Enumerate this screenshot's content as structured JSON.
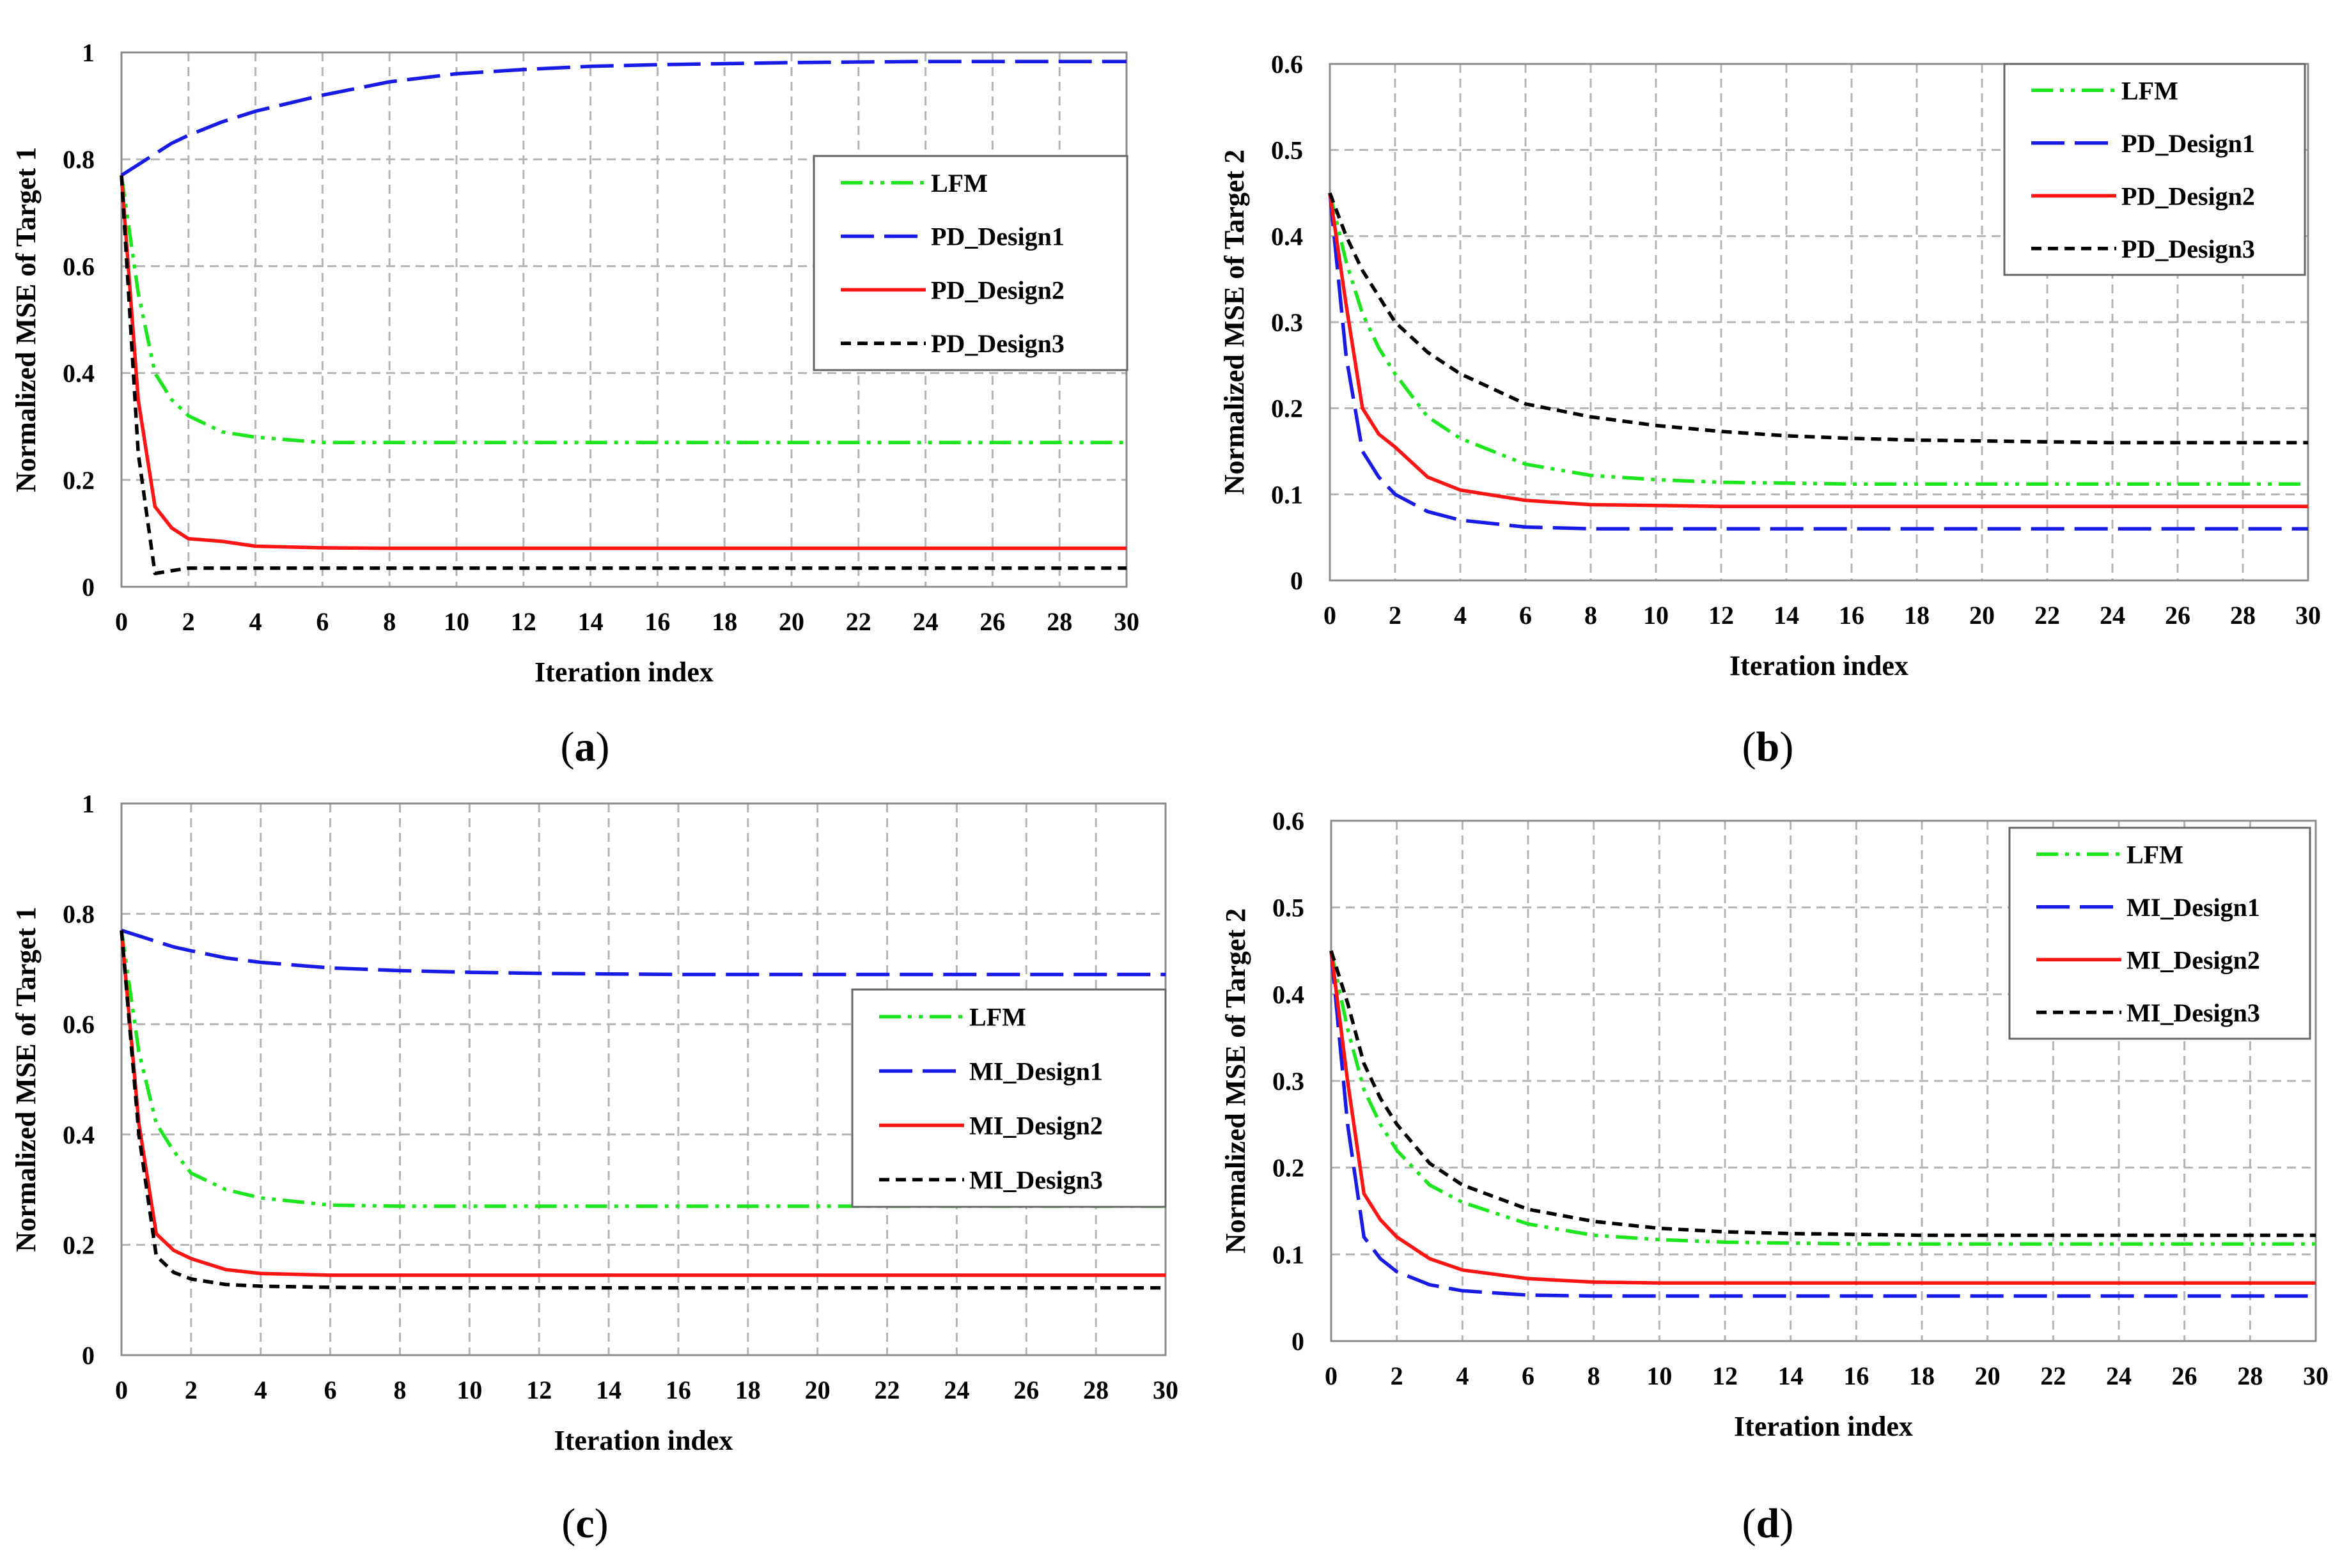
{
  "colors": {
    "lfm": "#1ee61e",
    "design1": "#1a1ae6",
    "design2": "#ff1414",
    "design3": "#000000"
  },
  "chart_data": [
    {
      "id": "a",
      "type": "line",
      "caption": "a",
      "xlabel": "Iteration index",
      "ylabel": "Normalized MSE of Target 1",
      "xlim": [
        0,
        30
      ],
      "ylim": [
        0,
        1
      ],
      "xticks": [
        0,
        2,
        4,
        6,
        8,
        10,
        12,
        14,
        16,
        18,
        20,
        22,
        24,
        26,
        28,
        30
      ],
      "yticks": [
        0,
        0.2,
        0.4,
        0.6,
        0.8,
        1
      ],
      "ytick_labels": [
        "0",
        "0.2",
        "0.4",
        "0.6",
        "0.8",
        "1"
      ],
      "grid": true,
      "legend_position": "upper-right",
      "x": [
        0,
        0.5,
        1,
        1.5,
        2,
        3,
        4,
        6,
        8,
        10,
        12,
        14,
        16,
        18,
        20,
        22,
        24,
        26,
        28,
        30
      ],
      "series": [
        {
          "name": "LFM",
          "style": "dashdotdot",
          "color": "#1ee61e",
          "values": [
            0.77,
            0.55,
            0.4,
            0.35,
            0.32,
            0.29,
            0.28,
            0.27,
            0.27,
            0.27,
            0.27,
            0.27,
            0.27,
            0.27,
            0.27,
            0.27,
            0.27,
            0.27,
            0.27,
            0.27
          ]
        },
        {
          "name": "PD_Design1",
          "style": "longdash",
          "color": "#1a1ae6",
          "values": [
            0.77,
            0.79,
            0.81,
            0.83,
            0.845,
            0.87,
            0.89,
            0.92,
            0.945,
            0.96,
            0.968,
            0.974,
            0.977,
            0.979,
            0.981,
            0.982,
            0.983,
            0.983,
            0.983,
            0.983
          ]
        },
        {
          "name": "PD_Design2",
          "style": "solid",
          "color": "#ff1414",
          "values": [
            0.77,
            0.35,
            0.15,
            0.11,
            0.09,
            0.085,
            0.076,
            0.073,
            0.072,
            0.072,
            0.072,
            0.072,
            0.072,
            0.072,
            0.072,
            0.072,
            0.072,
            0.072,
            0.072,
            0.072
          ]
        },
        {
          "name": "PD_Design3",
          "style": "shortdash",
          "color": "#000000",
          "values": [
            0.77,
            0.25,
            0.025,
            0.03,
            0.035,
            0.035,
            0.035,
            0.035,
            0.035,
            0.035,
            0.035,
            0.035,
            0.035,
            0.035,
            0.035,
            0.035,
            0.035,
            0.035,
            0.035,
            0.035
          ]
        }
      ]
    },
    {
      "id": "b",
      "type": "line",
      "caption": "b",
      "xlabel": "Iteration index",
      "ylabel": "Normalized MSE of Target 2",
      "xlim": [
        0,
        30
      ],
      "ylim": [
        0,
        0.6
      ],
      "xticks": [
        0,
        2,
        4,
        6,
        8,
        10,
        12,
        14,
        16,
        18,
        20,
        22,
        24,
        26,
        28,
        30
      ],
      "yticks": [
        0,
        0.1,
        0.2,
        0.3,
        0.4,
        0.5,
        0.6
      ],
      "ytick_labels": [
        "0",
        "0.1",
        "0.2",
        "0.3",
        "0.4",
        "0.5",
        "0.6"
      ],
      "grid": true,
      "legend_position": "upper-right",
      "x": [
        0,
        0.5,
        1,
        1.5,
        2,
        3,
        4,
        6,
        8,
        10,
        12,
        14,
        16,
        18,
        20,
        22,
        24,
        26,
        28,
        30
      ],
      "series": [
        {
          "name": "LFM",
          "style": "dashdotdot",
          "color": "#1ee61e",
          "values": [
            0.45,
            0.37,
            0.31,
            0.27,
            0.24,
            0.19,
            0.165,
            0.135,
            0.122,
            0.117,
            0.114,
            0.113,
            0.112,
            0.112,
            0.112,
            0.112,
            0.112,
            0.112,
            0.112,
            0.112
          ]
        },
        {
          "name": "PD_Design1",
          "style": "longdash",
          "color": "#1a1ae6",
          "values": [
            0.45,
            0.26,
            0.15,
            0.12,
            0.1,
            0.08,
            0.07,
            0.062,
            0.06,
            0.06,
            0.06,
            0.06,
            0.06,
            0.06,
            0.06,
            0.06,
            0.06,
            0.06,
            0.06,
            0.06
          ]
        },
        {
          "name": "PD_Design2",
          "style": "solid",
          "color": "#ff1414",
          "values": [
            0.45,
            0.32,
            0.2,
            0.17,
            0.155,
            0.12,
            0.105,
            0.093,
            0.088,
            0.087,
            0.086,
            0.086,
            0.086,
            0.086,
            0.086,
            0.086,
            0.086,
            0.086,
            0.086,
            0.086
          ]
        },
        {
          "name": "PD_Design3",
          "style": "shortdash",
          "color": "#000000",
          "values": [
            0.45,
            0.4,
            0.36,
            0.33,
            0.3,
            0.265,
            0.24,
            0.205,
            0.19,
            0.18,
            0.173,
            0.168,
            0.165,
            0.163,
            0.162,
            0.161,
            0.16,
            0.16,
            0.16,
            0.16
          ]
        }
      ]
    },
    {
      "id": "c",
      "type": "line",
      "caption": "c",
      "xlabel": "Iteration index",
      "ylabel": "Normalized MSE of Target 1",
      "xlim": [
        0,
        30
      ],
      "ylim": [
        0,
        1
      ],
      "xticks": [
        0,
        2,
        4,
        6,
        8,
        10,
        12,
        14,
        16,
        18,
        20,
        22,
        24,
        26,
        28,
        30
      ],
      "yticks": [
        0,
        0.2,
        0.4,
        0.6,
        0.8,
        1
      ],
      "ytick_labels": [
        "0",
        "0.2",
        "0.4",
        "0.6",
        "0.8",
        "1"
      ],
      "grid": true,
      "legend_position": "center-right",
      "x": [
        0,
        0.5,
        1,
        1.5,
        2,
        3,
        4,
        6,
        8,
        10,
        12,
        14,
        16,
        18,
        20,
        22,
        24,
        26,
        28,
        30
      ],
      "series": [
        {
          "name": "LFM",
          "style": "dashdotdot",
          "color": "#1ee61e",
          "values": [
            0.77,
            0.55,
            0.42,
            0.37,
            0.33,
            0.3,
            0.285,
            0.272,
            0.27,
            0.27,
            0.27,
            0.27,
            0.27,
            0.27,
            0.27,
            0.27,
            0.27,
            0.27,
            0.27,
            0.27
          ]
        },
        {
          "name": "MI_Design1",
          "style": "longdash",
          "color": "#1a1ae6",
          "values": [
            0.77,
            0.76,
            0.75,
            0.74,
            0.733,
            0.72,
            0.712,
            0.702,
            0.697,
            0.694,
            0.692,
            0.691,
            0.69,
            0.69,
            0.69,
            0.69,
            0.69,
            0.69,
            0.69,
            0.69
          ]
        },
        {
          "name": "MI_Design2",
          "style": "solid",
          "color": "#ff1414",
          "values": [
            0.77,
            0.42,
            0.22,
            0.19,
            0.175,
            0.155,
            0.148,
            0.145,
            0.145,
            0.145,
            0.145,
            0.145,
            0.145,
            0.145,
            0.145,
            0.145,
            0.145,
            0.145,
            0.145,
            0.145
          ]
        },
        {
          "name": "MI_Design3",
          "style": "shortdash",
          "color": "#000000",
          "values": [
            0.77,
            0.4,
            0.18,
            0.15,
            0.138,
            0.128,
            0.125,
            0.123,
            0.122,
            0.122,
            0.122,
            0.122,
            0.122,
            0.122,
            0.122,
            0.122,
            0.122,
            0.122,
            0.122,
            0.122
          ]
        }
      ]
    },
    {
      "id": "d",
      "type": "line",
      "caption": "d",
      "xlabel": "Iteration index",
      "ylabel": "Normalized MSE of Target 2",
      "xlim": [
        0,
        30
      ],
      "ylim": [
        0,
        0.6
      ],
      "xticks": [
        0,
        2,
        4,
        6,
        8,
        10,
        12,
        14,
        16,
        18,
        20,
        22,
        24,
        26,
        28,
        30
      ],
      "yticks": [
        0,
        0.1,
        0.2,
        0.3,
        0.4,
        0.5,
        0.6
      ],
      "ytick_labels": [
        "0",
        "0.1",
        "0.2",
        "0.3",
        "0.4",
        "0.5",
        "0.6"
      ],
      "grid": true,
      "legend_position": "upper-right",
      "x": [
        0,
        0.5,
        1,
        1.5,
        2,
        3,
        4,
        6,
        8,
        10,
        12,
        14,
        16,
        18,
        20,
        22,
        24,
        26,
        28,
        30
      ],
      "series": [
        {
          "name": "LFM",
          "style": "dashdotdot",
          "color": "#1ee61e",
          "values": [
            0.45,
            0.36,
            0.29,
            0.25,
            0.22,
            0.18,
            0.16,
            0.135,
            0.122,
            0.117,
            0.114,
            0.113,
            0.112,
            0.112,
            0.112,
            0.112,
            0.112,
            0.112,
            0.112,
            0.112
          ]
        },
        {
          "name": "MI_Design1",
          "style": "longdash",
          "color": "#1a1ae6",
          "values": [
            0.45,
            0.25,
            0.12,
            0.095,
            0.08,
            0.065,
            0.058,
            0.053,
            0.052,
            0.052,
            0.052,
            0.052,
            0.052,
            0.052,
            0.052,
            0.052,
            0.052,
            0.052,
            0.052,
            0.052
          ]
        },
        {
          "name": "MI_Design2",
          "style": "solid",
          "color": "#ff1414",
          "values": [
            0.45,
            0.3,
            0.17,
            0.14,
            0.12,
            0.095,
            0.082,
            0.072,
            0.068,
            0.067,
            0.067,
            0.067,
            0.067,
            0.067,
            0.067,
            0.067,
            0.067,
            0.067,
            0.067,
            0.067
          ]
        },
        {
          "name": "MI_Design3",
          "style": "shortdash",
          "color": "#000000",
          "values": [
            0.45,
            0.39,
            0.32,
            0.28,
            0.25,
            0.205,
            0.18,
            0.152,
            0.138,
            0.13,
            0.126,
            0.124,
            0.123,
            0.122,
            0.122,
            0.122,
            0.122,
            0.122,
            0.122,
            0.122
          ]
        }
      ]
    }
  ]
}
